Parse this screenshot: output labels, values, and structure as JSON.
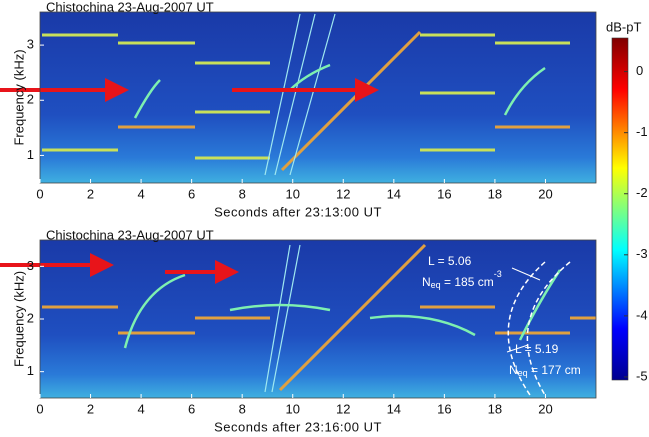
{
  "chart_data": [
    {
      "type": "spectrogram",
      "title": "Chistochina 23-Aug-2007 UT",
      "x_label": "Seconds after 23:13:00 UT",
      "y_label": "Frequency (kHz)",
      "xlim": [
        0,
        22
      ],
      "xticks": [
        0,
        2,
        4,
        6,
        8,
        10,
        12,
        14,
        16,
        18,
        20
      ],
      "ylim": [
        0.5,
        3.6
      ],
      "yticks": [
        1,
        2,
        3
      ]
    },
    {
      "type": "spectrogram",
      "title": "Chistochina 23-Aug-2007 UT",
      "x_label": "Seconds after 23:16:00 UT",
      "y_label": "Frequency (kHz)",
      "xlim": [
        0,
        22
      ],
      "xticks": [
        0,
        2,
        4,
        6,
        8,
        10,
        12,
        14,
        16,
        18,
        20
      ],
      "ylim": [
        0.5,
        3.5
      ],
      "yticks": [
        1,
        2,
        3
      ],
      "annotations": [
        {
          "L": "L = 5.06",
          "density": [
            "N",
            "eq",
            " = 185 cm",
            "-3"
          ]
        },
        {
          "L": "L = 5.19",
          "density": [
            "N",
            "eq",
            " = 177 cm"
          ]
        }
      ]
    }
  ],
  "colorbar": {
    "label": "dB-pT",
    "lim": [
      -5.05,
      0.55
    ],
    "ticks": [
      0,
      -1,
      -2,
      -3,
      -4,
      -5
    ]
  }
}
